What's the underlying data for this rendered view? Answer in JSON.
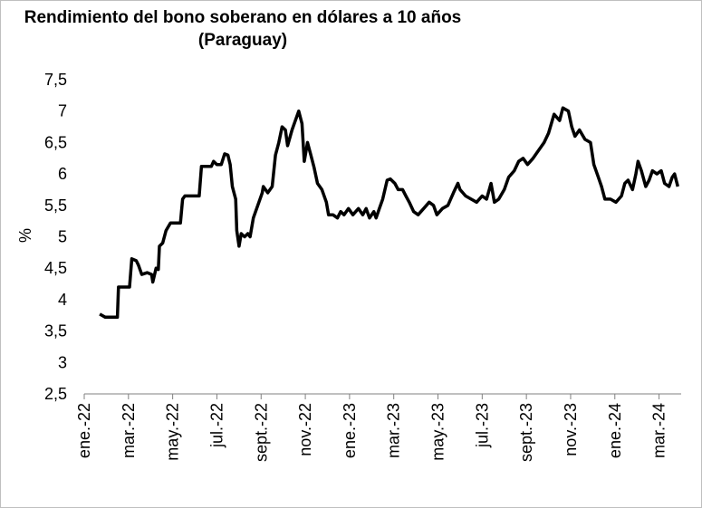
{
  "chart_data": {
    "type": "line",
    "title": "Rendimiento del bono soberano en dólares a 10 años",
    "subtitle": "(Paraguay)",
    "y_label": "%",
    "xlim": [
      0,
      27
    ],
    "xticks": [
      {
        "value": 0,
        "label": "ene.-22"
      },
      {
        "value": 2,
        "label": "mar.-22"
      },
      {
        "value": 4,
        "label": "may.-22"
      },
      {
        "value": 6,
        "label": "jul.-22"
      },
      {
        "value": 8,
        "label": "sept.-22"
      },
      {
        "value": 10,
        "label": "nov.-22"
      },
      {
        "value": 12,
        "label": "ene.-23"
      },
      {
        "value": 14,
        "label": "mar.-23"
      },
      {
        "value": 16,
        "label": "may.-23"
      },
      {
        "value": 18,
        "label": "jul.-23"
      },
      {
        "value": 20,
        "label": "sept.-23"
      },
      {
        "value": 22,
        "label": "nov.-23"
      },
      {
        "value": 24,
        "label": "ene.-24"
      },
      {
        "value": 26,
        "label": "mar.-24"
      }
    ],
    "ylim": [
      2.5,
      7.5
    ],
    "yticks": [
      {
        "value": 2.5,
        "label": "2,5"
      },
      3,
      {
        "value": 3.5,
        "label": "3,5"
      },
      4,
      {
        "value": 4.5,
        "label": "4,5"
      },
      5,
      {
        "value": 5.5,
        "label": "5,5"
      },
      6,
      {
        "value": 6.5,
        "label": "6,5"
      },
      7,
      {
        "value": 7.5,
        "label": "7,5"
      }
    ],
    "grid": false,
    "x": [
      0.7,
      0.95,
      1.5,
      1.55,
      2.05,
      2.15,
      2.35,
      2.45,
      2.6,
      2.85,
      3.05,
      3.1,
      3.25,
      3.35,
      3.4,
      3.55,
      3.7,
      3.9,
      4.35,
      4.45,
      4.55,
      5.2,
      5.3,
      5.75,
      5.85,
      6.0,
      6.2,
      6.35,
      6.5,
      6.6,
      6.7,
      6.85,
      6.9,
      7.0,
      7.1,
      7.25,
      7.4,
      7.5,
      7.65,
      7.85,
      8.05,
      8.1,
      8.3,
      8.5,
      8.65,
      8.8,
      8.95,
      9.1,
      9.2,
      9.4,
      9.55,
      9.7,
      9.85,
      9.95,
      10.1,
      10.25,
      10.4,
      10.55,
      10.75,
      10.95,
      11.05,
      11.25,
      11.45,
      11.6,
      11.75,
      11.95,
      12.15,
      12.4,
      12.6,
      12.75,
      12.9,
      13.1,
      13.2,
      13.35,
      13.5,
      13.7,
      13.85,
      14.05,
      14.2,
      14.4,
      14.55,
      14.7,
      14.9,
      15.1,
      15.35,
      15.6,
      15.8,
      15.95,
      16.2,
      16.45,
      16.7,
      16.9,
      17.0,
      17.25,
      17.5,
      17.75,
      18.0,
      18.2,
      18.4,
      18.55,
      18.75,
      19.0,
      19.2,
      19.45,
      19.65,
      19.85,
      20.05,
      20.3,
      20.5,
      20.8,
      21.0,
      21.25,
      21.5,
      21.65,
      21.9,
      22.05,
      22.2,
      22.4,
      22.65,
      22.9,
      23.05,
      23.25,
      23.4,
      23.55,
      23.8,
      24.05,
      24.3,
      24.45,
      24.6,
      24.8,
      24.95,
      25.05,
      25.2,
      25.4,
      25.55,
      25.7,
      25.9,
      26.1,
      26.25,
      26.45,
      26.6,
      26.7,
      26.85
    ],
    "series": [
      {
        "name": "Paraguay",
        "color": "#000000",
        "values": [
          3.77,
          3.72,
          3.72,
          4.2,
          4.2,
          4.65,
          4.62,
          4.55,
          4.4,
          4.43,
          4.4,
          4.28,
          4.5,
          4.48,
          4.85,
          4.9,
          5.1,
          5.22,
          5.22,
          5.6,
          5.65,
          5.65,
          6.12,
          6.12,
          6.2,
          6.15,
          6.15,
          6.32,
          6.3,
          6.15,
          5.8,
          5.6,
          5.1,
          4.85,
          5.05,
          5.0,
          5.05,
          5.0,
          5.3,
          5.5,
          5.7,
          5.8,
          5.7,
          5.8,
          6.3,
          6.5,
          6.75,
          6.7,
          6.45,
          6.7,
          6.85,
          7.0,
          6.8,
          6.2,
          6.5,
          6.3,
          6.1,
          5.85,
          5.75,
          5.55,
          5.35,
          5.35,
          5.3,
          5.4,
          5.35,
          5.45,
          5.35,
          5.45,
          5.35,
          5.45,
          5.3,
          5.4,
          5.3,
          5.45,
          5.6,
          5.9,
          5.92,
          5.85,
          5.75,
          5.75,
          5.65,
          5.55,
          5.4,
          5.35,
          5.45,
          5.55,
          5.5,
          5.35,
          5.45,
          5.5,
          5.7,
          5.85,
          5.75,
          5.65,
          5.6,
          5.55,
          5.65,
          5.6,
          5.85,
          5.55,
          5.6,
          5.75,
          5.95,
          6.05,
          6.2,
          6.25,
          6.15,
          6.25,
          6.35,
          6.5,
          6.65,
          6.95,
          6.85,
          7.05,
          7.0,
          6.75,
          6.6,
          6.7,
          6.55,
          6.5,
          6.15,
          5.95,
          5.8,
          5.6,
          5.6,
          5.55,
          5.65,
          5.85,
          5.9,
          5.75,
          6.0,
          6.2,
          6.05,
          5.8,
          5.9,
          6.05,
          6.0,
          6.05,
          5.85,
          5.8,
          5.95,
          6.0,
          5.8
        ]
      }
    ]
  }
}
